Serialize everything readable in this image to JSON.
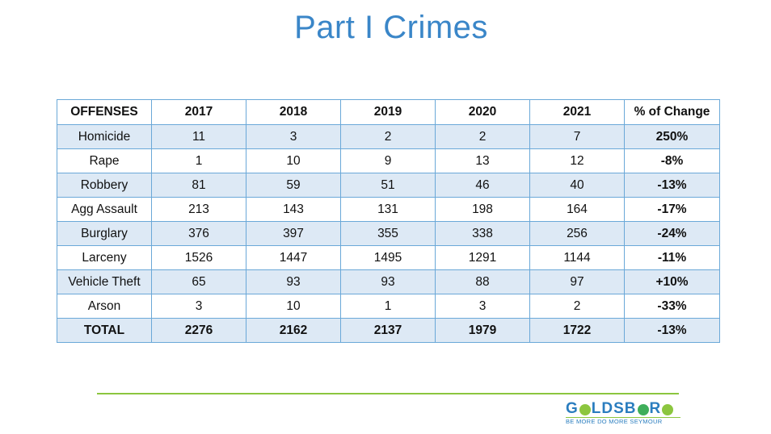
{
  "title": "Part I Crimes",
  "table": {
    "headers": [
      "OFFENSES",
      "2017",
      "2018",
      "2019",
      "2020",
      "2021",
      "% of Change"
    ],
    "rows": [
      [
        "Homicide",
        "11",
        "3",
        "2",
        "2",
        "7",
        "250%"
      ],
      [
        "Rape",
        "1",
        "10",
        "9",
        "13",
        "12",
        "-8%"
      ],
      [
        "Robbery",
        "81",
        "59",
        "51",
        "46",
        "40",
        "-13%"
      ],
      [
        "Agg Assault",
        "213",
        "143",
        "131",
        "198",
        "164",
        "-17%"
      ],
      [
        "Burglary",
        "376",
        "397",
        "355",
        "338",
        "256",
        "-24%"
      ],
      [
        "Larceny",
        "1526",
        "1447",
        "1495",
        "1291",
        "1144",
        "-11%"
      ],
      [
        "Vehicle Theft",
        "65",
        "93",
        "93",
        "88",
        "97",
        "+10%"
      ],
      [
        "Arson",
        "3",
        "10",
        "1",
        "3",
        "2",
        "-33%"
      ],
      [
        "TOTAL",
        "2276",
        "2162",
        "2137",
        "1979",
        "1722",
        "-13%"
      ]
    ]
  },
  "logo": {
    "word_parts": [
      "G",
      "LDSB",
      "R"
    ],
    "tagline": "BE MORE  DO MORE  SEYMOUR",
    "colors": {
      "blue": "#2a7dbf",
      "green": "#8cc63f"
    }
  },
  "colors": {
    "title": "#3a86c8",
    "table_border": "#6aa8d8",
    "row_stripe": "#dde9f5",
    "divider": "#8cc63f"
  }
}
